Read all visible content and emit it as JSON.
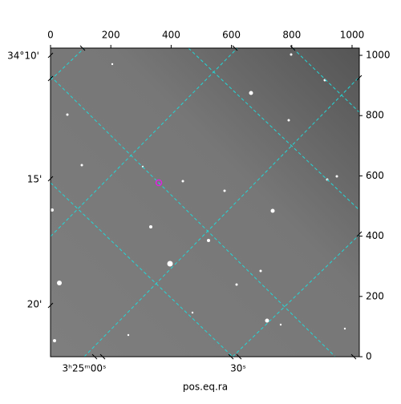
{
  "chart_data": {
    "type": "image",
    "xlabel": "pos.eq.ra",
    "xlim": [
      0,
      1024
    ],
    "ylim": [
      0,
      1024
    ],
    "xticks": [
      0,
      200,
      400,
      600,
      800,
      1000
    ],
    "yticks": [
      0,
      200,
      400,
      600,
      800,
      1000
    ],
    "dec_labels": [
      "34°10'",
      "15'",
      "20'"
    ],
    "ra_labels": [
      "3ʰ25ᵐ00ˢ",
      "30ˢ"
    ],
    "grid_color": "#22d8d8"
  }
}
